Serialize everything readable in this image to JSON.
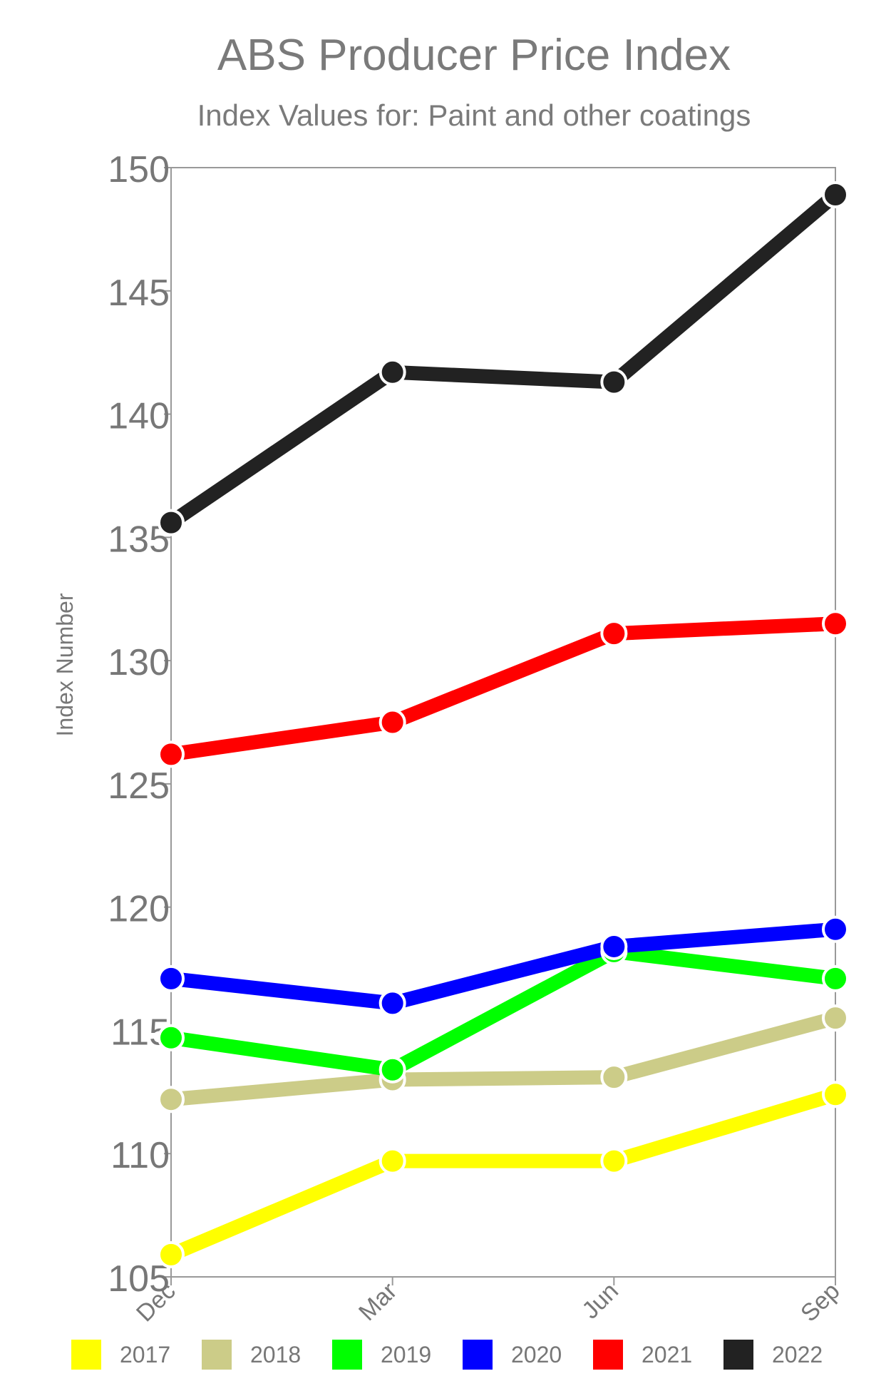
{
  "chart_data": {
    "type": "line",
    "title": "ABS Producer Price Index",
    "subtitle": "Index Values for: Paint and other coatings",
    "xlabel": "",
    "ylabel": "Index Number",
    "categories": [
      "Dec",
      "Mar",
      "Jun",
      "Sep"
    ],
    "ylim": [
      105,
      150
    ],
    "yticks": [
      105,
      110,
      115,
      120,
      125,
      130,
      135,
      140,
      145,
      150
    ],
    "legend_position": "bottom",
    "series": [
      {
        "name": "2017",
        "color": "#ffff00",
        "values": [
          105.9,
          109.7,
          109.7,
          112.4
        ]
      },
      {
        "name": "2018",
        "color": "#cccc88",
        "values": [
          112.2,
          113.0,
          113.1,
          115.5
        ]
      },
      {
        "name": "2019",
        "color": "#00ff00",
        "values": [
          114.7,
          113.4,
          118.2,
          117.1
        ]
      },
      {
        "name": "2020",
        "color": "#0000ff",
        "values": [
          117.1,
          116.1,
          118.4,
          119.1
        ]
      },
      {
        "name": "2021",
        "color": "#ff0000",
        "values": [
          126.2,
          127.5,
          131.1,
          131.5
        ]
      },
      {
        "name": "2022",
        "color": "#222222",
        "values": [
          135.6,
          141.7,
          141.3,
          148.9
        ]
      }
    ]
  }
}
